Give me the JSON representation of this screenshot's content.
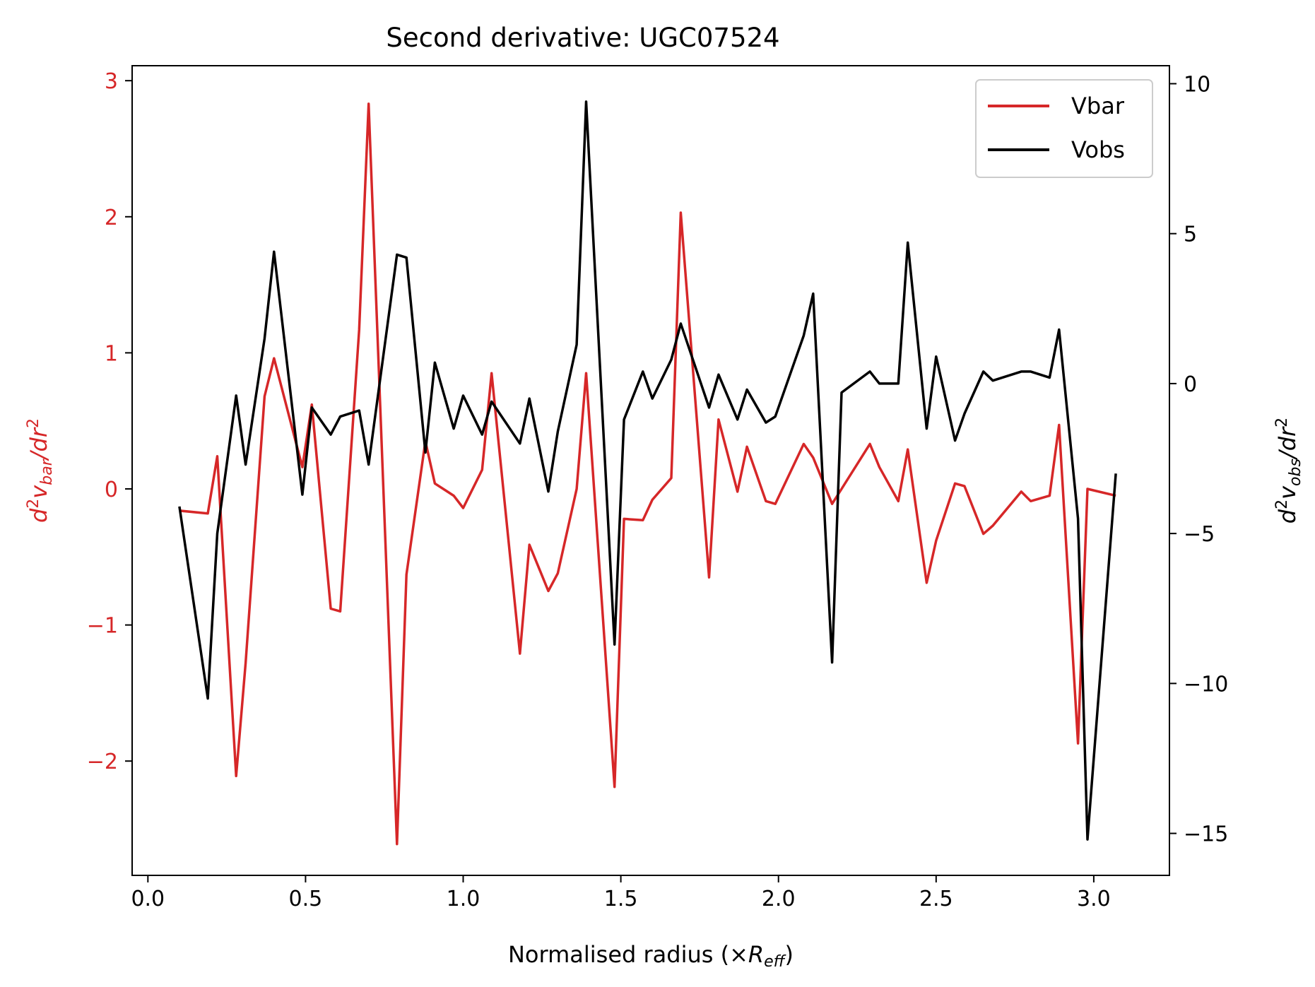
{
  "chart_data": {
    "type": "line",
    "title": "Second derivative: UGC07524",
    "xlabel_prefix": "Normalised radius (×",
    "xlabel_var": "R",
    "xlabel_sub": "eff",
    "xlabel_suffix": ")",
    "ylabel_left": {
      "prefix": "d",
      "sup1": "2",
      "mid": "v",
      "sub": "bar",
      "mid2": "/dr",
      "sup2": "2"
    },
    "ylabel_right": {
      "prefix": "d",
      "sup1": "2",
      "mid": "v",
      "sub": "obs",
      "mid2": "/dr",
      "sup2": "2"
    },
    "xlim": [
      -0.05,
      3.24
    ],
    "ylim_left": [
      -2.84,
      3.11
    ],
    "ylim_right": [
      -16.4,
      10.6
    ],
    "x_ticks": [
      0.0,
      0.5,
      1.0,
      1.5,
      2.0,
      2.5,
      3.0
    ],
    "x_tick_labels": [
      "0.0",
      "0.5",
      "1.0",
      "1.5",
      "2.0",
      "2.5",
      "3.0"
    ],
    "y_left_ticks": [
      -2,
      -1,
      0,
      1,
      2,
      3
    ],
    "y_left_tick_labels": [
      "−2",
      "−1",
      "0",
      "1",
      "2",
      "3"
    ],
    "y_right_ticks": [
      -15,
      -10,
      -5,
      0,
      5,
      10
    ],
    "y_right_tick_labels": [
      "−15",
      "−10",
      "−5",
      "0",
      "5",
      "10"
    ],
    "grid": false,
    "legend_position": "top-right",
    "colors": {
      "vbar": "#d62728",
      "vobs": "#000000",
      "left_axis": "#d62728",
      "right_axis": "#000000"
    },
    "series": [
      {
        "name": "Vbar",
        "axis": "left",
        "color": "#d62728",
        "x": [
          0.1,
          0.19,
          0.22,
          0.28,
          0.31,
          0.37,
          0.4,
          0.49,
          0.52,
          0.58,
          0.61,
          0.67,
          0.7,
          0.79,
          0.82,
          0.88,
          0.91,
          0.97,
          1.0,
          1.06,
          1.09,
          1.18,
          1.21,
          1.27,
          1.3,
          1.36,
          1.39,
          1.48,
          1.51,
          1.57,
          1.6,
          1.66,
          1.69,
          1.78,
          1.81,
          1.87,
          1.9,
          1.96,
          1.99,
          2.08,
          2.11,
          2.17,
          2.2,
          2.29,
          2.32,
          2.38,
          2.41,
          2.47,
          2.5,
          2.56,
          2.59,
          2.65,
          2.68,
          2.77,
          2.8,
          2.86,
          2.89,
          2.95,
          2.98,
          3.07
        ],
        "y": [
          -0.16,
          -0.18,
          0.24,
          -2.11,
          -1.28,
          0.68,
          0.96,
          0.16,
          0.62,
          -0.88,
          -0.9,
          1.17,
          2.83,
          -2.61,
          -0.63,
          0.35,
          0.04,
          -0.05,
          -0.14,
          0.14,
          0.85,
          -1.21,
          -0.41,
          -0.75,
          -0.62,
          0.0,
          0.85,
          -2.19,
          -0.22,
          -0.23,
          -0.08,
          0.08,
          2.03,
          -0.65,
          0.51,
          -0.02,
          0.31,
          -0.09,
          -0.11,
          0.33,
          0.23,
          -0.11,
          0.0,
          0.33,
          0.16,
          -0.09,
          0.29,
          -0.69,
          -0.38,
          0.04,
          0.02,
          -0.33,
          -0.27,
          -0.02,
          -0.09,
          -0.05,
          0.47,
          -1.87,
          0.0,
          -0.05
        ]
      },
      {
        "name": "Vobs",
        "axis": "right",
        "color": "#000000",
        "x": [
          0.1,
          0.19,
          0.22,
          0.28,
          0.31,
          0.37,
          0.4,
          0.49,
          0.52,
          0.58,
          0.61,
          0.67,
          0.7,
          0.79,
          0.82,
          0.88,
          0.91,
          0.97,
          1.0,
          1.06,
          1.09,
          1.18,
          1.21,
          1.27,
          1.3,
          1.36,
          1.39,
          1.48,
          1.51,
          1.57,
          1.6,
          1.66,
          1.69,
          1.78,
          1.81,
          1.87,
          1.9,
          1.96,
          1.99,
          2.08,
          2.11,
          2.17,
          2.2,
          2.29,
          2.32,
          2.38,
          2.41,
          2.47,
          2.5,
          2.56,
          2.59,
          2.65,
          2.68,
          2.77,
          2.8,
          2.86,
          2.89,
          2.95,
          2.98,
          3.07
        ],
        "y": [
          -4.1,
          -10.5,
          -5.0,
          -0.4,
          -2.7,
          1.5,
          4.4,
          -3.7,
          -0.8,
          -1.7,
          -1.1,
          -0.9,
          -2.7,
          4.3,
          4.2,
          -2.3,
          0.7,
          -1.5,
          -0.4,
          -1.7,
          -0.6,
          -2.0,
          -0.5,
          -3.6,
          -1.6,
          1.3,
          9.4,
          -8.7,
          -1.2,
          0.4,
          -0.5,
          0.8,
          2.0,
          -0.8,
          0.3,
          -1.2,
          -0.2,
          -1.3,
          -1.1,
          1.6,
          3.0,
          -9.3,
          -0.3,
          0.4,
          0.0,
          0.0,
          4.7,
          -1.5,
          0.9,
          -1.9,
          -1.0,
          0.4,
          0.1,
          0.4,
          0.4,
          0.2,
          1.8,
          -4.5,
          -15.2,
          -3.0
        ]
      }
    ]
  }
}
